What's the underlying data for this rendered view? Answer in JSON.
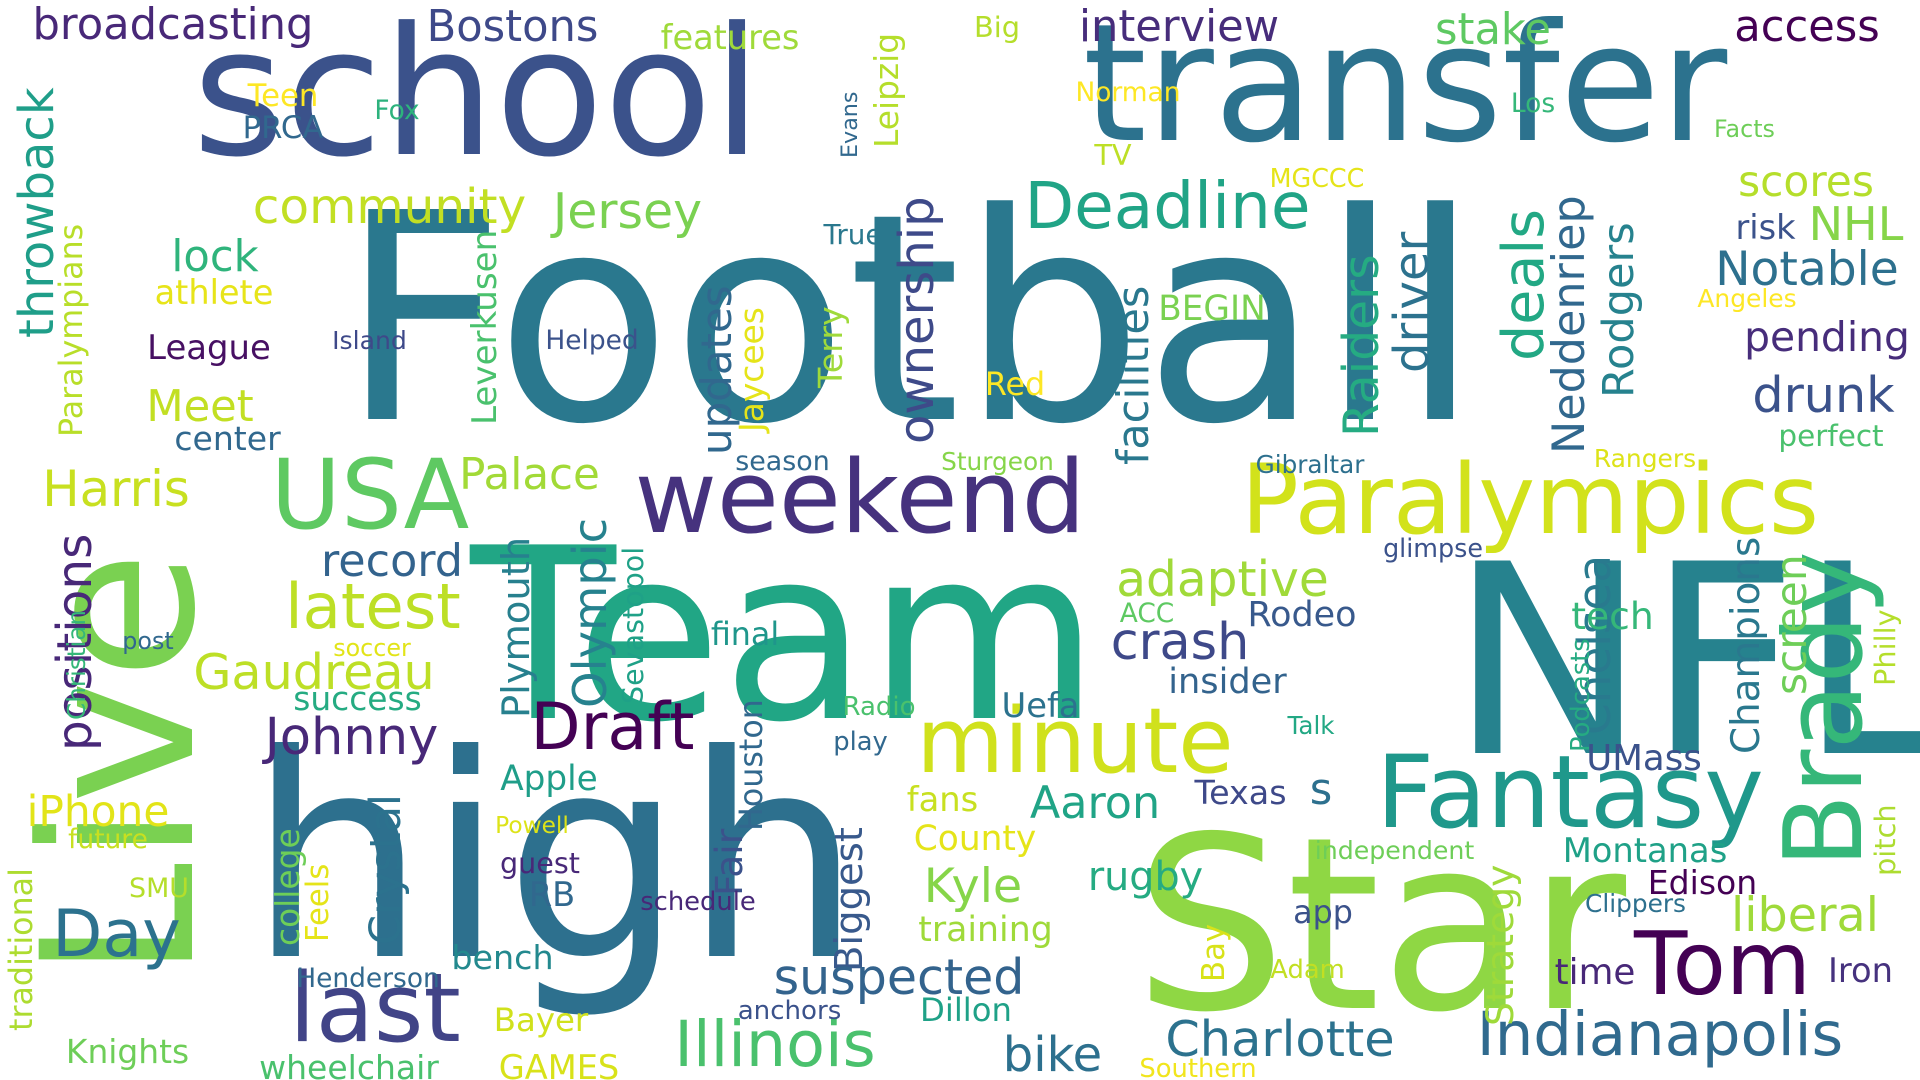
{
  "words": [
    {
      "text": "Football",
      "color": "#2a788e"
    },
    {
      "text": "school",
      "color": "#3b528b"
    },
    {
      "text": "transfer",
      "color": "#2c728e"
    },
    {
      "text": "Live",
      "color": "#7ad151"
    },
    {
      "text": "Team",
      "color": "#21a685"
    },
    {
      "text": "high",
      "color": "#2d708e"
    },
    {
      "text": "NFL",
      "color": "#26828e"
    },
    {
      "text": "Star",
      "color": "#8fd744"
    },
    {
      "text": "weekend",
      "color": "#46327e"
    },
    {
      "text": "Paralympics",
      "color": "#d2e21b"
    },
    {
      "text": "minute",
      "color": "#d0e11c"
    },
    {
      "text": "Fantasy",
      "color": "#1f988b"
    },
    {
      "text": "Brady",
      "color": "#35b779"
    },
    {
      "text": "USA",
      "color": "#5ec962"
    },
    {
      "text": "Tom",
      "color": "#440154"
    },
    {
      "text": "Indianapolis",
      "color": "#306a8e"
    },
    {
      "text": "Illinois",
      "color": "#4ac16d"
    },
    {
      "text": "last",
      "color": "#414487"
    },
    {
      "text": "Draft",
      "color": "#440154"
    },
    {
      "text": "Deadline",
      "color": "#20a486"
    },
    {
      "text": "broadcasting",
      "color": "#482878"
    },
    {
      "text": "Bostons",
      "color": "#3e4989"
    },
    {
      "text": "interview",
      "color": "#472d7b"
    },
    {
      "text": "stake",
      "color": "#5ec962"
    },
    {
      "text": "access",
      "color": "#440154"
    },
    {
      "text": "features",
      "color": "#9fda3a"
    },
    {
      "text": "Big",
      "color": "#b5de2b"
    },
    {
      "text": "Teen",
      "color": "#fde725"
    },
    {
      "text": "PRCA",
      "color": "#31688e"
    },
    {
      "text": "Fox",
      "color": "#2db27d"
    },
    {
      "text": "Evans",
      "color": "#31688e"
    },
    {
      "text": "Leipzig",
      "color": "#b5de2b"
    },
    {
      "text": "Norman",
      "color": "#fde725"
    },
    {
      "text": "Los",
      "color": "#35b779"
    },
    {
      "text": "Facts",
      "color": "#6ece58"
    },
    {
      "text": "TV",
      "color": "#bddf26"
    },
    {
      "text": "MGCCC",
      "color": "#e5e419"
    },
    {
      "text": "scores",
      "color": "#b5de2b"
    },
    {
      "text": "risk",
      "color": "#3b528b"
    },
    {
      "text": "NHL",
      "color": "#86d549"
    },
    {
      "text": "Notable",
      "color": "#2d708e"
    },
    {
      "text": "Angeles",
      "color": "#fde725"
    },
    {
      "text": "pending",
      "color": "#472d7b"
    },
    {
      "text": "drunk",
      "color": "#3b528b"
    },
    {
      "text": "community",
      "color": "#c2df23"
    },
    {
      "text": "Jersey",
      "color": "#7ad151"
    },
    {
      "text": "throwback",
      "color": "#1f9e89"
    },
    {
      "text": "lock",
      "color": "#2fb47c"
    },
    {
      "text": "athlete",
      "color": "#e7e419"
    },
    {
      "text": "True",
      "color": "#2a788e"
    },
    {
      "text": "Island",
      "color": "#3e4989"
    },
    {
      "text": "Helped",
      "color": "#3b528b"
    },
    {
      "text": "League",
      "color": "#471063"
    },
    {
      "text": "Paralympians",
      "color": "#b8de29"
    },
    {
      "text": "Meet",
      "color": "#c2df23"
    },
    {
      "text": "center",
      "color": "#31688e"
    },
    {
      "text": "Leverkusen",
      "color": "#4ac16d"
    },
    {
      "text": "Terry",
      "color": "#9fda3a"
    },
    {
      "text": "Jaycees",
      "color": "#e5e419"
    },
    {
      "text": "updates",
      "color": "#31688e"
    },
    {
      "text": "ownership",
      "color": "#3e4a89"
    },
    {
      "text": "facilities",
      "color": "#2a788e"
    },
    {
      "text": "BEGIN",
      "color": "#7ad151"
    },
    {
      "text": "Red",
      "color": "#fde725"
    },
    {
      "text": "Raiders",
      "color": "#25ab82"
    },
    {
      "text": "driver",
      "color": "#2c728e"
    },
    {
      "text": "deals",
      "color": "#22a884"
    },
    {
      "text": "Neddenriep",
      "color": "#31688e"
    },
    {
      "text": "Rodgers",
      "color": "#26828e"
    },
    {
      "text": "perfect",
      "color": "#4ac16d"
    },
    {
      "text": "Harris",
      "color": "#c8e020"
    },
    {
      "text": "Palace",
      "color": "#a2da37"
    },
    {
      "text": "season",
      "color": "#31688e"
    },
    {
      "text": "Sturgeon",
      "color": "#86d549"
    },
    {
      "text": "Gibraltar",
      "color": "#2d708e"
    },
    {
      "text": "Rangers",
      "color": "#dde318"
    },
    {
      "text": "positions",
      "color": "#482878"
    },
    {
      "text": "record",
      "color": "#33638d"
    },
    {
      "text": "latest",
      "color": "#bddf26"
    },
    {
      "text": "Olympic",
      "color": "#26828e"
    },
    {
      "text": "Sevastopol",
      "color": "#1fa187"
    },
    {
      "text": "glimpse",
      "color": "#3b528b"
    },
    {
      "text": "adaptive",
      "color": "#a0da39"
    },
    {
      "text": "Rodeo",
      "color": "#38598c"
    },
    {
      "text": "crash",
      "color": "#3e4989"
    },
    {
      "text": "Gaudreau",
      "color": "#bddf26"
    },
    {
      "text": "Plymouth",
      "color": "#27808e"
    },
    {
      "text": "final",
      "color": "#1f968b"
    },
    {
      "text": "insider",
      "color": "#33638d"
    },
    {
      "text": "Chelsea",
      "color": "#297a8e"
    },
    {
      "text": "tech",
      "color": "#35b779"
    },
    {
      "text": "Champions",
      "color": "#2a788e"
    },
    {
      "text": "screen",
      "color": "#6ece58"
    },
    {
      "text": "Philly",
      "color": "#b5de2b"
    },
    {
      "text": "Christian",
      "color": "#35b779"
    },
    {
      "text": "post",
      "color": "#31688e"
    },
    {
      "text": "soccer",
      "color": "#e2e418"
    },
    {
      "text": "ACC",
      "color": "#5ec962"
    },
    {
      "text": "Podcasts",
      "color": "#25ab82"
    },
    {
      "text": "success",
      "color": "#25ab82"
    },
    {
      "text": "Johnny",
      "color": "#482878"
    },
    {
      "text": "Houston",
      "color": "#31688e"
    },
    {
      "text": "Radio",
      "color": "#4ac16d"
    },
    {
      "text": "Uefa",
      "color": "#2c728e"
    },
    {
      "text": "Talk",
      "color": "#22a884"
    },
    {
      "text": "UMass",
      "color": "#3b528b"
    },
    {
      "text": "play",
      "color": "#31688e"
    },
    {
      "text": "Apple",
      "color": "#1f9e89"
    },
    {
      "text": "Aaron",
      "color": "#20a486"
    },
    {
      "text": "Texas",
      "color": "#3e4989"
    },
    {
      "text": "s",
      "color": "#2d708e"
    },
    {
      "text": "iPhone",
      "color": "#e2e418"
    },
    {
      "text": "future",
      "color": "#c8e020"
    },
    {
      "text": "traditional",
      "color": "#addc30"
    },
    {
      "text": "SMU",
      "color": "#b5de2b"
    },
    {
      "text": "Crystal",
      "color": "#2c728e"
    },
    {
      "text": "college",
      "color": "#6ece58"
    },
    {
      "text": "Feels",
      "color": "#e5e419"
    },
    {
      "text": "Powell",
      "color": "#dde318"
    },
    {
      "text": "guest",
      "color": "#482878"
    },
    {
      "text": "RB",
      "color": "#31688e"
    },
    {
      "text": "Fair",
      "color": "#3b528b"
    },
    {
      "text": "Biggest",
      "color": "#38598c"
    },
    {
      "text": "fans",
      "color": "#c8e020"
    },
    {
      "text": "County",
      "color": "#e5e419"
    },
    {
      "text": "Kyle",
      "color": "#86d549"
    },
    {
      "text": "rugby",
      "color": "#25ab82"
    },
    {
      "text": "independent",
      "color": "#6ece58"
    },
    {
      "text": "Montanas",
      "color": "#1fa187"
    },
    {
      "text": "Edison",
      "color": "#440154"
    },
    {
      "text": "Strategy",
      "color": "#9fda3a"
    },
    {
      "text": "Clippers",
      "color": "#2d708e"
    },
    {
      "text": "pitch",
      "color": "#addc30"
    },
    {
      "text": "liberal",
      "color": "#9fda3a"
    },
    {
      "text": "Day",
      "color": "#2c728e"
    },
    {
      "text": "app",
      "color": "#3b528b"
    },
    {
      "text": "schedule",
      "color": "#482878"
    },
    {
      "text": "training",
      "color": "#9fda3a"
    },
    {
      "text": "Bay",
      "color": "#d8e219"
    },
    {
      "text": "Adam",
      "color": "#c2df23"
    },
    {
      "text": "time",
      "color": "#482878"
    },
    {
      "text": "Iron",
      "color": "#46327e"
    },
    {
      "text": "bench",
      "color": "#23898e"
    },
    {
      "text": "Henderson",
      "color": "#31688e"
    },
    {
      "text": "suspected",
      "color": "#33638d"
    },
    {
      "text": "anchors",
      "color": "#3b528b"
    },
    {
      "text": "Dillon",
      "color": "#1fa187"
    },
    {
      "text": "Bayer",
      "color": "#d0e11c"
    },
    {
      "text": "Charlotte",
      "color": "#2c728e"
    },
    {
      "text": "Knights",
      "color": "#6ece58"
    },
    {
      "text": "wheelchair",
      "color": "#4ac16d"
    },
    {
      "text": "GAMES",
      "color": "#d8e219"
    },
    {
      "text": "bike",
      "color": "#2d708e"
    },
    {
      "text": "Southern",
      "color": "#f1e51d"
    }
  ]
}
